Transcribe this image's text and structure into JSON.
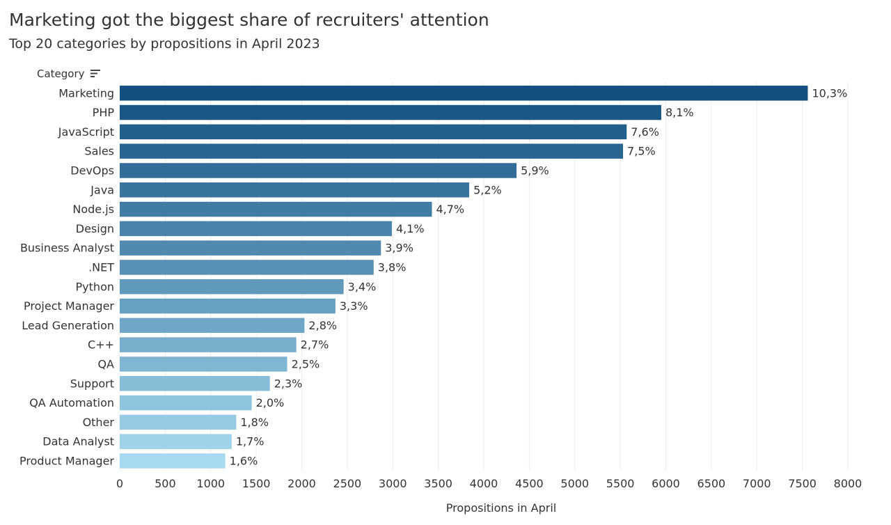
{
  "header": {
    "title": "Marketing got the biggest share of recruiters' attention",
    "subtitle": "Top 20 categories by propositions in April 2023"
  },
  "chart_data": {
    "type": "bar",
    "orientation": "horizontal",
    "title": "Marketing got the biggest share of recruiters' attention",
    "subtitle": "Top 20 categories by propositions in April 2023",
    "ylabel": "Category",
    "xlabel": "Propositions in April",
    "xlim": [
      0,
      8000
    ],
    "xticks": [
      0,
      500,
      1000,
      1500,
      2000,
      2500,
      3000,
      3500,
      4000,
      4500,
      5000,
      5500,
      6000,
      6500,
      7000,
      7500,
      8000
    ],
    "grid": "vertical",
    "categories": [
      "Marketing",
      "PHP",
      "JavaScript",
      "Sales",
      "DevOps",
      "Java",
      "Node.js",
      "Design",
      "Business Analyst",
      ".NET",
      "Python",
      "Project Manager",
      "Lead Generation",
      "C++",
      "QA",
      "Support",
      "QA Automation",
      "Other",
      "Data Analyst",
      "Product Manager"
    ],
    "values": [
      7560,
      5950,
      5570,
      5530,
      4360,
      3840,
      3430,
      2990,
      2870,
      2790,
      2460,
      2370,
      2030,
      1940,
      1840,
      1650,
      1450,
      1280,
      1230,
      1160
    ],
    "data_labels": [
      "10,3%",
      "8,1%",
      "7,6%",
      "7,5%",
      "5,9%",
      "5,2%",
      "4,7%",
      "4,1%",
      "3,9%",
      "3,8%",
      "3,4%",
      "3,3%",
      "2,8%",
      "2,7%",
      "2,5%",
      "2,3%",
      "2,0%",
      "1,8%",
      "1,7%",
      "1,6%"
    ],
    "color_gradient": [
      "#12507f",
      "#a7daf0"
    ]
  }
}
